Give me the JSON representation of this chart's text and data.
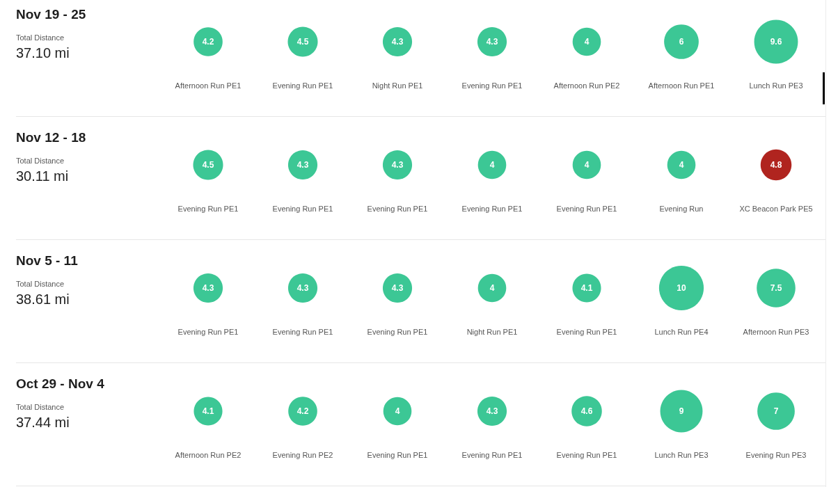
{
  "chart_data": [
    {
      "type": "other",
      "title": "Nov 19 - 25",
      "subtitle": "Total Distance",
      "annotations": [
        "37.10 mi"
      ],
      "categories": [
        "Afternoon Run PE1",
        "Evening Run PE1",
        "Night Run PE1",
        "Evening Run PE1",
        "Afternoon Run PE2",
        "Afternoon Run PE1",
        "Lunch Run PE3"
      ],
      "values": [
        4.2,
        4.5,
        4.3,
        4.3,
        4,
        6,
        9.6
      ],
      "colors": [
        "#3cc795",
        "#3cc795",
        "#3cc795",
        "#3cc795",
        "#3cc795",
        "#3cc795",
        "#3cc795"
      ],
      "data_labels": true
    },
    {
      "type": "other",
      "title": "Nov 12 - 18",
      "subtitle": "Total Distance",
      "annotations": [
        "30.11 mi"
      ],
      "categories": [
        "Evening Run PE1",
        "Evening Run PE1",
        "Evening Run PE1",
        "Evening Run PE1",
        "Evening Run PE1",
        "Evening Run",
        "XC Beacon Park PE5"
      ],
      "values": [
        4.5,
        4.3,
        4.3,
        4,
        4,
        4,
        4.8
      ],
      "colors": [
        "#3cc795",
        "#3cc795",
        "#3cc795",
        "#3cc795",
        "#3cc795",
        "#3cc795",
        "#b0241f"
      ],
      "data_labels": true
    },
    {
      "type": "other",
      "title": "Nov 5 - 11",
      "subtitle": "Total Distance",
      "annotations": [
        "38.61 mi"
      ],
      "categories": [
        "Evening Run PE1",
        "Evening Run PE1",
        "Evening Run PE1",
        "Night Run PE1",
        "Evening Run PE1",
        "Lunch Run PE4",
        "Afternoon Run PE3"
      ],
      "values": [
        4.3,
        4.3,
        4.3,
        4,
        4.1,
        10,
        7.5
      ],
      "colors": [
        "#3cc795",
        "#3cc795",
        "#3cc795",
        "#3cc795",
        "#3cc795",
        "#3cc795",
        "#3cc795"
      ],
      "data_labels": true
    },
    {
      "type": "other",
      "title": "Oct 29 - Nov 4",
      "subtitle": "Total Distance",
      "annotations": [
        "37.44 mi"
      ],
      "categories": [
        "Afternoon Run PE2",
        "Evening Run PE2",
        "Evening Run PE1",
        "Evening Run PE1",
        "Evening Run PE1",
        "Lunch Run PE3",
        "Evening Run PE3"
      ],
      "values": [
        4.1,
        4.2,
        4,
        4.3,
        4.6,
        9,
        7
      ],
      "colors": [
        "#3cc795",
        "#3cc795",
        "#3cc795",
        "#3cc795",
        "#3cc795",
        "#3cc795",
        "#3cc795"
      ],
      "data_labels": true
    }
  ]
}
